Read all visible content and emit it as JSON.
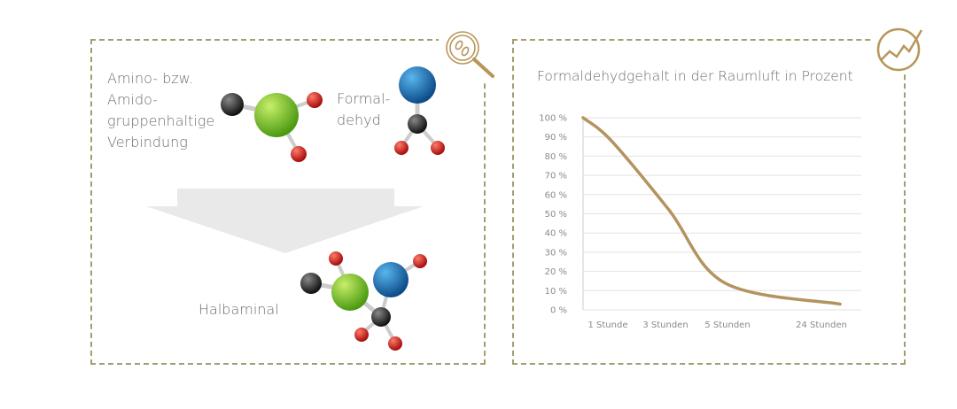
{
  "reaction": {
    "amine_label": [
      "Amino- bzw.",
      "Amido-",
      "gruppenhaltige",
      "Verbindung"
    ],
    "formaldehyde_label": [
      "Formal-",
      "dehyd"
    ],
    "product_label": "Halbaminal",
    "icon": "magnifier-bacteria-icon"
  },
  "chart_icon": "trend-chart-icon",
  "colors": {
    "border": "#a39d70",
    "line": "#b3935f",
    "icon": "#b8965a",
    "green": "#7cc42a",
    "blue": "#1f74b8",
    "red": "#d21e1e",
    "black": "#2a2a2a"
  },
  "chart_data": {
    "type": "line",
    "title": "Formaldehydgehalt in der Raumluft in Prozent",
    "xlabel": "",
    "ylabel": "",
    "categories": [
      "1 Stunde",
      "3 Stunden",
      "5 Stunden",
      "24 Stunden"
    ],
    "start_value": 100,
    "values": [
      88,
      52,
      14,
      3
    ],
    "yticks": [
      "0 %",
      "10 %",
      "20 %",
      "30 %",
      "40 %",
      "50 %",
      "60 %",
      "70 %",
      "80 %",
      "90 %",
      "100 %"
    ],
    "ylim": [
      0,
      100
    ],
    "grid": true
  }
}
